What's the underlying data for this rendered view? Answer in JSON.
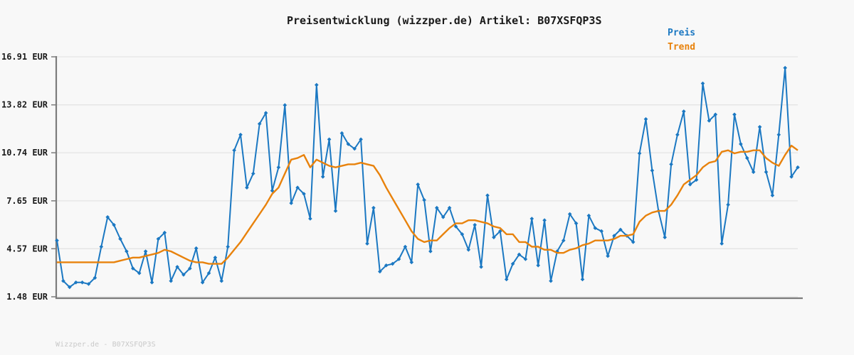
{
  "page": {
    "background": "#f8f8f8",
    "watermark": "Wizzper.de - B07XSFQP3S"
  },
  "colors": {
    "background": "#f8f8f8",
    "grid": "#e4e4e4",
    "axis": "#7c7c7c",
    "title_text": "#1a1a1a",
    "tick_text": "#1a1a1a",
    "watermark_text": "#c9c9c9",
    "price_blue": "#1b78c2",
    "trend_orange": "#e8820c"
  },
  "chart_data": {
    "type": "line",
    "title": "Preisentwicklung (wizzper.de) Artikel: B07XSFQP3S",
    "currency": "EUR",
    "grid": true,
    "y_axis": {
      "range": [
        1.48,
        16.91
      ],
      "tick_values": [
        16.91,
        13.82,
        10.74,
        7.65,
        4.57,
        1.48
      ],
      "tick_labels": [
        "16.91 EUR",
        "13.82 EUR",
        "10.74 EUR",
        "7.65 EUR",
        "4.57 EUR",
        "1.48 EUR"
      ]
    },
    "x_axis": {
      "tick_labels": []
    },
    "legend": {
      "position": "top-right",
      "items": [
        {
          "label": "Preis",
          "color": "#1b78c2"
        },
        {
          "label": "Trend",
          "color": "#e8820c"
        }
      ]
    },
    "series": [
      {
        "name": "Preis",
        "color": "#1b78c2",
        "marker": "diamond",
        "values": [
          5.1,
          2.5,
          2.1,
          2.4,
          2.4,
          2.3,
          2.7,
          4.7,
          6.6,
          6.1,
          5.2,
          4.4,
          3.3,
          3.0,
          4.4,
          2.4,
          5.2,
          5.6,
          2.5,
          3.4,
          2.9,
          3.3,
          4.6,
          2.4,
          3.0,
          4.0,
          2.5,
          4.7,
          10.9,
          11.9,
          8.5,
          9.4,
          12.6,
          13.3,
          8.3,
          9.8,
          13.8,
          7.5,
          8.5,
          8.1,
          6.5,
          15.1,
          9.2,
          11.6,
          7.0,
          12.0,
          11.3,
          11.0,
          11.6,
          4.9,
          7.2,
          3.1,
          3.5,
          3.6,
          3.9,
          4.7,
          3.7,
          8.7,
          7.7,
          4.4,
          7.2,
          6.6,
          7.2,
          6.0,
          5.5,
          4.5,
          6.1,
          3.4,
          8.0,
          5.3,
          5.7,
          2.6,
          3.6,
          4.2,
          3.9,
          6.5,
          3.5,
          6.4,
          2.5,
          4.4,
          5.1,
          6.8,
          6.2,
          2.6,
          6.7,
          5.9,
          5.7,
          4.1,
          5.4,
          5.8,
          5.4,
          5.0,
          10.7,
          12.9,
          9.6,
          7.0,
          5.3,
          10.0,
          11.9,
          13.4,
          8.7,
          9.0,
          15.2,
          12.8,
          13.2,
          4.9,
          7.4,
          13.2,
          11.3,
          10.4,
          9.5,
          12.4,
          9.5,
          8.0,
          11.9,
          16.2,
          9.2,
          9.8
        ]
      },
      {
        "name": "Trend",
        "color": "#e8820c",
        "marker": "none",
        "values": [
          3.7,
          3.7,
          3.7,
          3.7,
          3.7,
          3.7,
          3.7,
          3.7,
          3.7,
          3.7,
          3.8,
          3.9,
          4.0,
          4.0,
          4.1,
          4.2,
          4.3,
          4.5,
          4.4,
          4.2,
          4.0,
          3.8,
          3.7,
          3.7,
          3.6,
          3.6,
          3.6,
          4.0,
          4.5,
          5.0,
          5.6,
          6.2,
          6.8,
          7.4,
          8.1,
          8.5,
          9.4,
          10.3,
          10.4,
          10.6,
          9.8,
          10.3,
          10.1,
          9.9,
          9.8,
          9.9,
          10.0,
          10.0,
          10.1,
          10.0,
          9.9,
          9.3,
          8.5,
          7.8,
          7.1,
          6.4,
          5.7,
          5.2,
          5.0,
          5.1,
          5.1,
          5.5,
          5.9,
          6.2,
          6.2,
          6.4,
          6.4,
          6.3,
          6.2,
          6.0,
          5.9,
          5.5,
          5.5,
          5.0,
          5.0,
          4.7,
          4.7,
          4.5,
          4.5,
          4.3,
          4.3,
          4.5,
          4.6,
          4.8,
          4.9,
          5.1,
          5.1,
          5.1,
          5.2,
          5.4,
          5.4,
          5.5,
          6.3,
          6.7,
          6.9,
          7.0,
          7.0,
          7.4,
          8.0,
          8.7,
          9.0,
          9.3,
          9.8,
          10.1,
          10.2,
          10.8,
          10.9,
          10.7,
          10.8,
          10.8,
          10.9,
          10.9,
          10.4,
          10.1,
          9.9,
          10.6,
          11.2,
          10.9
        ]
      }
    ]
  }
}
